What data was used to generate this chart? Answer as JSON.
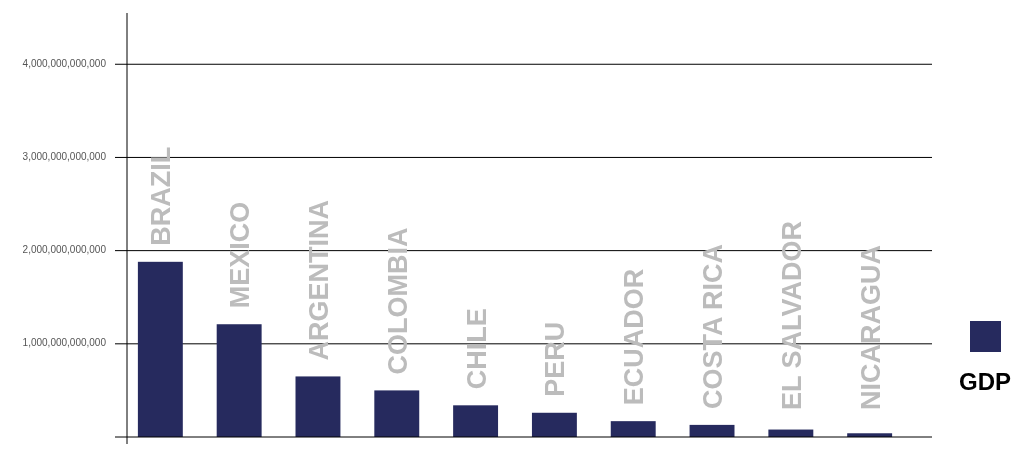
{
  "chart_data": {
    "type": "bar",
    "categories": [
      "BRAZIL",
      "MEXICO",
      "ARGENTINA",
      "COLOMBIA",
      "CHILE",
      "PERU",
      "ECUADOR",
      "COSTA RICA",
      "EL SALVADOR",
      "NICARAGUA"
    ],
    "series": [
      {
        "name": "GDP",
        "color": "#262a5e",
        "values": [
          1880000000000,
          1210000000000,
          650000000000,
          500000000000,
          340000000000,
          260000000000,
          170000000000,
          130000000000,
          80000000000,
          40000000000
        ]
      }
    ],
    "ylim": [
      0,
      4550000000000
    ],
    "yticks": [
      {
        "value": 1000000000000,
        "label": "1,000,000,000,000"
      },
      {
        "value": 2000000000000,
        "label": "2,000,000,000,000"
      },
      {
        "value": 3000000000000,
        "label": "3,000,000,000,000"
      },
      {
        "value": 4000000000000,
        "label": "4,000,000,000,000"
      }
    ],
    "grid": "y",
    "legend": "right"
  }
}
